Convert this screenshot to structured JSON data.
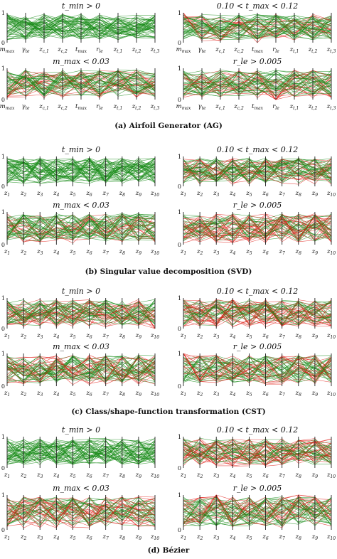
{
  "colors": {
    "feasible": "#1a8c1a",
    "infeasible": "#e0201a",
    "axis": "#222222"
  },
  "captions": [
    {
      "label": "(a) Airfoil Generator (AG)"
    },
    {
      "label": "(b) Singular value decomposition (SVD)"
    },
    {
      "label": "(c) Class/shape-function transformation (CST)"
    },
    {
      "label": "(d) Bézier"
    }
  ],
  "chart_data": [
    {
      "type": "parallel-coordinates",
      "group": "AG",
      "title": "t_min > 0",
      "axes": [
        "m_max",
        "γ_te",
        "z_c,1",
        "z_c,2",
        "t_max",
        "r_le",
        "z_t,1",
        "z_t,2",
        "z_t,3"
      ],
      "ylim": [
        0,
        1
      ],
      "yticks": [
        "0",
        "1"
      ],
      "series": [],
      "red_bias": []
    },
    {
      "type": "parallel-coordinates",
      "group": "AG",
      "title": "0.10 < t_max < 0.12",
      "axes": [
        "m_max",
        "γ_te",
        "z_c,1",
        "z_c,2",
        "t_max",
        "r_le",
        "z_t,1",
        "z_t,2",
        "z_t,3"
      ],
      "ylim": [
        0,
        1
      ],
      "yticks": [
        "0",
        "1"
      ],
      "series": [],
      "red_bias": [
        0.8,
        0.5,
        0.5,
        0.5,
        0.4,
        0.6,
        0.5,
        0.5,
        0.5
      ]
    },
    {
      "type": "parallel-coordinates",
      "group": "AG",
      "title": "m_max < 0.03",
      "axes": [
        "m_max",
        "γ_te",
        "z_c,1",
        "z_c,2",
        "t_max",
        "r_le",
        "z_t,1",
        "z_t,2",
        "z_t,3"
      ],
      "ylim": [
        0,
        1
      ],
      "yticks": [
        "0",
        "1"
      ],
      "series": [],
      "red_bias": [
        0.5,
        0.5,
        0.5,
        0.5,
        0.5,
        0.5,
        0.5,
        0.5,
        0.5
      ]
    },
    {
      "type": "parallel-coordinates",
      "group": "AG",
      "title": "r_le > 0.005",
      "axes": [
        "m_max",
        "γ_te",
        "z_c,1",
        "z_c,2",
        "t_max",
        "r_le",
        "z_t,1",
        "z_t,2",
        "z_t,3"
      ],
      "ylim": [
        0,
        1
      ],
      "yticks": [
        "0",
        "1"
      ],
      "series": [],
      "red_bias": [
        0.5,
        0.5,
        0.5,
        0.5,
        0.5,
        0.25,
        0.5,
        0.5,
        0.5
      ]
    },
    {
      "type": "parallel-coordinates",
      "group": "SVD",
      "title": "t_min > 0",
      "axes": [
        "z1",
        "z2",
        "z3",
        "z4",
        "z5",
        "z6",
        "z7",
        "z8",
        "z9",
        "z10"
      ],
      "ylim": [
        0,
        1
      ],
      "yticks": [
        "0",
        "1"
      ],
      "series": [],
      "red_bias": []
    },
    {
      "type": "parallel-coordinates",
      "group": "SVD",
      "title": "0.10 < t_max < 0.12",
      "axes": [
        "z1",
        "z2",
        "z3",
        "z4",
        "z5",
        "z6",
        "z7",
        "z8",
        "z9",
        "z10"
      ],
      "ylim": [
        0,
        1
      ],
      "yticks": [
        "0",
        "1"
      ],
      "series": [],
      "red_bias": [
        0.5,
        0.5,
        0.5,
        0.5,
        0.5,
        0.5,
        0.5,
        0.5,
        0.5,
        0.5
      ]
    },
    {
      "type": "parallel-coordinates",
      "group": "SVD",
      "title": "m_max < 0.03",
      "axes": [
        "z1",
        "z2",
        "z3",
        "z4",
        "z5",
        "z6",
        "z7",
        "z8",
        "z9",
        "z10"
      ],
      "ylim": [
        0,
        1
      ],
      "yticks": [
        "0",
        "1"
      ],
      "series": [],
      "red_bias": [
        0.5,
        0.5,
        0.5,
        0.5,
        0.5,
        0.5,
        0.5,
        0.5,
        0.5,
        0.5
      ]
    },
    {
      "type": "parallel-coordinates",
      "group": "SVD",
      "title": "r_le > 0.005",
      "axes": [
        "z1",
        "z2",
        "z3",
        "z4",
        "z5",
        "z6",
        "z7",
        "z8",
        "z9",
        "z10"
      ],
      "ylim": [
        0,
        1
      ],
      "yticks": [
        "0",
        "1"
      ],
      "series": [],
      "red_bias": [
        0.5,
        0.5,
        0.5,
        0.5,
        0.5,
        0.5,
        0.5,
        0.5,
        0.5,
        0.5
      ]
    },
    {
      "type": "parallel-coordinates",
      "group": "CST",
      "title": "t_min > 0",
      "axes": [
        "z1",
        "z2",
        "z3",
        "z4",
        "z5",
        "z6",
        "z7",
        "z8",
        "z9",
        "z10"
      ],
      "ylim": [
        0,
        1
      ],
      "yticks": [
        "0",
        "1"
      ],
      "series": [],
      "red_bias": [
        0.5,
        0.5,
        0.5,
        0.5,
        0.5,
        0.5,
        0.5,
        0.5,
        0.5,
        0.3
      ]
    },
    {
      "type": "parallel-coordinates",
      "group": "CST",
      "title": "0.10 < t_max < 0.12",
      "axes": [
        "z1",
        "z2",
        "z3",
        "z4",
        "z5",
        "z6",
        "z7",
        "z8",
        "z9",
        "z10"
      ],
      "ylim": [
        0,
        1
      ],
      "yticks": [
        "0",
        "1"
      ],
      "series": [],
      "red_bias": [
        0.5,
        0.5,
        0.5,
        0.5,
        0.5,
        0.5,
        0.5,
        0.5,
        0.5,
        0.5
      ]
    },
    {
      "type": "parallel-coordinates",
      "group": "CST",
      "title": "m_max < 0.03",
      "axes": [
        "z1",
        "z2",
        "z3",
        "z4",
        "z5",
        "z6",
        "z7",
        "z8",
        "z9",
        "z10"
      ],
      "ylim": [
        0,
        1
      ],
      "yticks": [
        "0",
        "1"
      ],
      "series": [],
      "red_bias": [
        0.5,
        0.5,
        0.5,
        0.5,
        0.5,
        0.5,
        0.5,
        0.5,
        0.5,
        0.5
      ]
    },
    {
      "type": "parallel-coordinates",
      "group": "CST",
      "title": "r_le > 0.005",
      "axes": [
        "z1",
        "z2",
        "z3",
        "z4",
        "z5",
        "z6",
        "z7",
        "z8",
        "z9",
        "z10"
      ],
      "ylim": [
        0,
        1
      ],
      "yticks": [
        "0",
        "1"
      ],
      "series": [],
      "red_bias": [
        0.8,
        0.5,
        0.5,
        0.5,
        0.5,
        0.5,
        0.5,
        0.5,
        0.5,
        0.5
      ]
    },
    {
      "type": "parallel-coordinates",
      "group": "Bezier",
      "title": "t_min > 0",
      "axes": [
        "z1",
        "z2",
        "z3",
        "z4",
        "z5",
        "z6",
        "z7",
        "z8",
        "z9",
        "z10"
      ],
      "ylim": [
        0,
        1
      ],
      "yticks": [
        "0",
        "1"
      ],
      "series": [],
      "red_bias": []
    },
    {
      "type": "parallel-coordinates",
      "group": "Bezier",
      "title": "0.10 < t_max < 0.12",
      "axes": [
        "z1",
        "z2",
        "z3",
        "z4",
        "z5",
        "z6",
        "z7",
        "z8",
        "z9",
        "z10"
      ],
      "ylim": [
        0,
        1
      ],
      "yticks": [
        "0",
        "1"
      ],
      "series": [],
      "red_bias": [
        0.5,
        0.5,
        0.5,
        0.5,
        0.5,
        0.5,
        0.5,
        0.5,
        0.5,
        0.5
      ]
    },
    {
      "type": "parallel-coordinates",
      "group": "Bezier",
      "title": "m_max < 0.03",
      "axes": [
        "z1",
        "z2",
        "z3",
        "z4",
        "z5",
        "z6",
        "z7",
        "z8",
        "z9",
        "z10"
      ],
      "ylim": [
        0,
        1
      ],
      "yticks": [
        "0",
        "1"
      ],
      "series": [],
      "red_bias": [
        0.5,
        0.5,
        0.5,
        0.5,
        0.5,
        0.5,
        0.5,
        0.5,
        0.5,
        0.5
      ]
    },
    {
      "type": "parallel-coordinates",
      "group": "Bezier",
      "title": "r_le > 0.005",
      "axes": [
        "z1",
        "z2",
        "z3",
        "z4",
        "z5",
        "z6",
        "z7",
        "z8",
        "z9",
        "z10"
      ],
      "ylim": [
        0,
        1
      ],
      "yticks": [
        "0",
        "1"
      ],
      "series": [],
      "red_bias": [
        0.5,
        0.5,
        0.8,
        0.5,
        0.5,
        0.5,
        0.5,
        0.8,
        0.5,
        0.5
      ]
    }
  ]
}
